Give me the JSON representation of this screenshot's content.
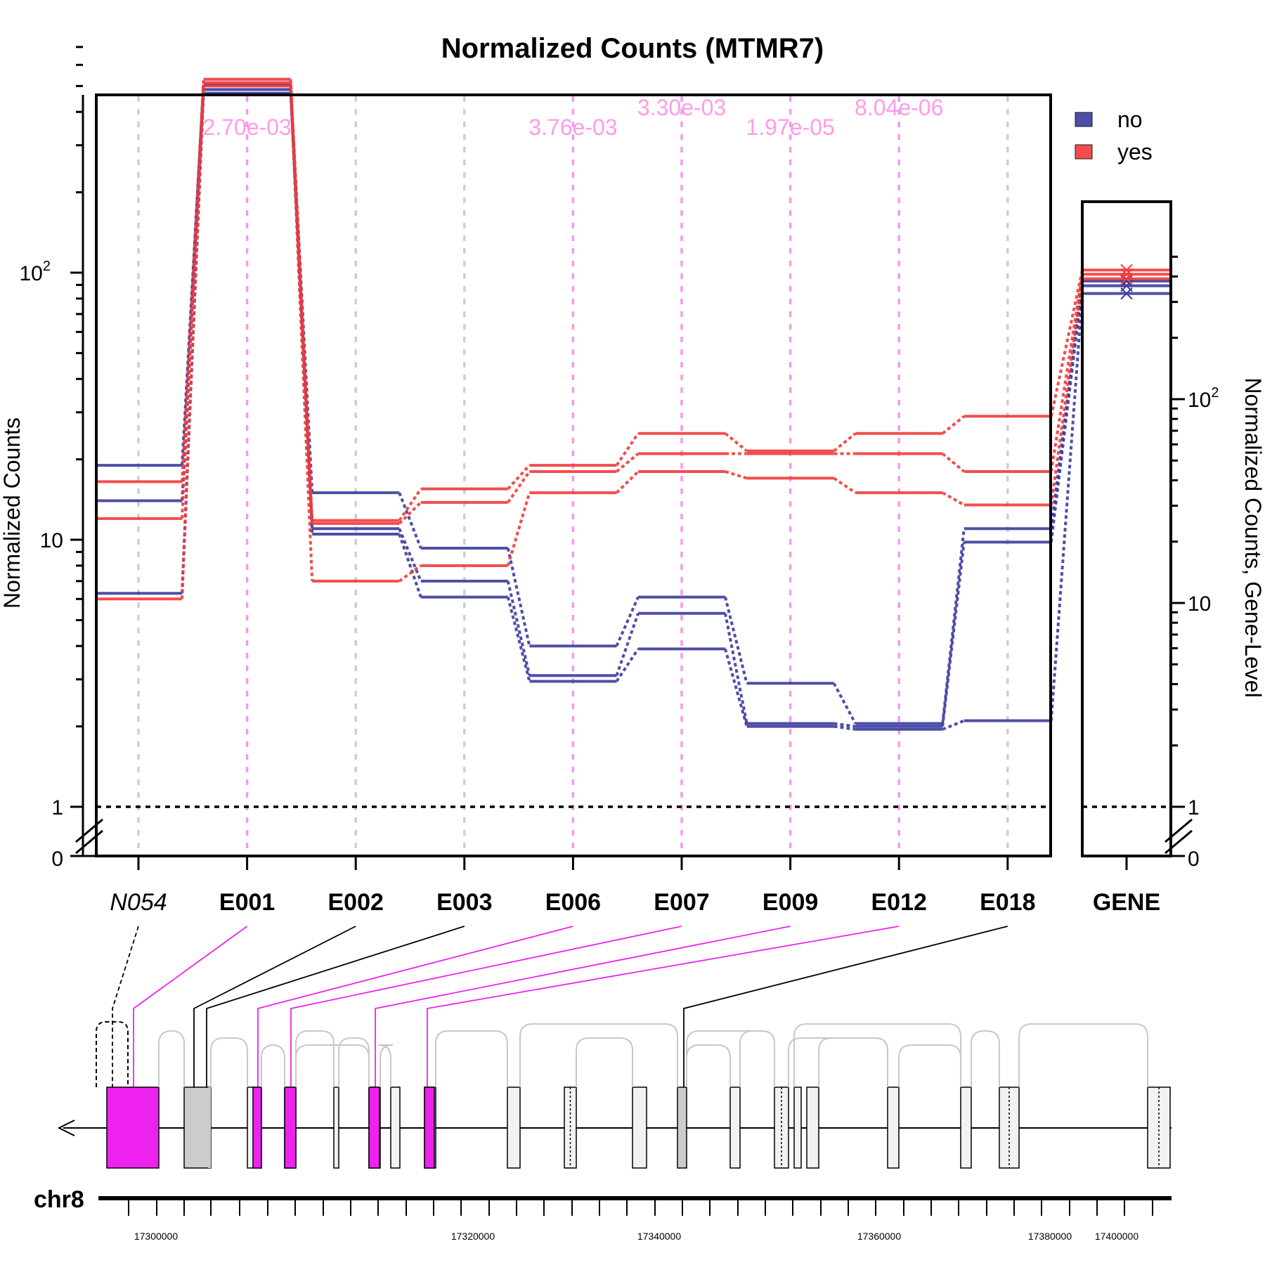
{
  "chart_data": {
    "type": "line",
    "title": "Normalized Counts (MTMR7)",
    "ylabel": "Normalized Counts",
    "ylabel_right": "Normalized Counts, Gene-Level",
    "y_scale": "log",
    "y_ticks": [
      {
        "value": 0,
        "label": "0"
      },
      {
        "value": 1,
        "label": "1"
      },
      {
        "value": 10,
        "label": "10"
      },
      {
        "value": 100,
        "label": "10",
        "sup": "2"
      }
    ],
    "gene_ticks": [
      {
        "value": 0,
        "label": "0"
      },
      {
        "value": 1,
        "label": "1"
      },
      {
        "value": 10,
        "label": "10"
      },
      {
        "value": 100,
        "label": "10",
        "sup": "2"
      }
    ],
    "features": [
      {
        "id": "N054",
        "italic": true,
        "sig": false
      },
      {
        "id": "E001",
        "italic": false,
        "sig": true
      },
      {
        "id": "E002",
        "italic": false,
        "sig": false
      },
      {
        "id": "E003",
        "italic": false,
        "sig": false
      },
      {
        "id": "E006",
        "italic": false,
        "sig": true
      },
      {
        "id": "E007",
        "italic": false,
        "sig": true
      },
      {
        "id": "E009",
        "italic": false,
        "sig": true
      },
      {
        "id": "E012",
        "italic": false,
        "sig": true
      },
      {
        "id": "E018",
        "italic": false,
        "sig": false
      }
    ],
    "gene_label": "GENE",
    "pvalues": [
      {
        "feature": "E001",
        "label": "2.70e-03",
        "row": 1
      },
      {
        "feature": "E006",
        "label": "3.76e-03",
        "row": 1
      },
      {
        "feature": "E007",
        "label": "3.30e-03",
        "row": 0
      },
      {
        "feature": "E009",
        "label": "1.97e-05",
        "row": 1
      },
      {
        "feature": "E012",
        "label": "8.04e-06",
        "row": 0
      }
    ],
    "legend": [
      {
        "label": "no",
        "color": "#3b3b9e"
      },
      {
        "label": "yes",
        "color": "#f23a3a"
      }
    ],
    "series": [
      {
        "group": "no",
        "values": [
          19,
          505,
          15,
          9.3,
          4,
          6.1,
          2.9,
          2.05,
          11
        ]
      },
      {
        "group": "no",
        "values": [
          14,
          485,
          11,
          7,
          3.1,
          5.3,
          2.05,
          2.0,
          9.8
        ]
      },
      {
        "group": "no",
        "values": [
          6.3,
          470,
          10.5,
          6.1,
          2.95,
          3.9,
          2.0,
          1.95,
          2.1
        ]
      },
      {
        "group": "yes",
        "values": [
          16.5,
          530,
          11.8,
          15.5,
          19,
          25,
          21.5,
          25,
          29
        ]
      },
      {
        "group": "yes",
        "values": [
          12,
          515,
          11.5,
          13.8,
          18,
          21,
          21,
          21,
          18
        ]
      },
      {
        "group": "yes",
        "values": [
          6,
          500,
          7,
          8,
          15,
          18,
          17,
          15,
          13.5
        ]
      }
    ],
    "gene_values": {
      "no": [
        380,
        360,
        330
      ],
      "yes": [
        430,
        410,
        390
      ]
    },
    "chromosome": "chr8",
    "coordinate_labels": [
      "17300000",
      "17320000",
      "17340000",
      "17360000",
      "17380000",
      "17400000"
    ],
    "colors": {
      "no": "#3b3b9e",
      "yes": "#f23a3a",
      "sig": "#ee22ee",
      "pvalue_text": "#ff9be8",
      "intron": "#c8c8c8",
      "exon_light": "#f2f2f2",
      "exon_grey": "#cccccc"
    },
    "grid": "vertical dashed lines at each feature",
    "legend_position": "top-right"
  }
}
